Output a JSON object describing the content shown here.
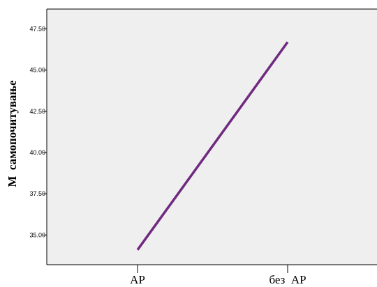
{
  "chart_data": {
    "type": "line",
    "categories": [
      "АР",
      "без  АР"
    ],
    "series": [
      {
        "values": [
          34.1,
          46.7
        ]
      }
    ],
    "ylabel": "M  самопочитување",
    "xlabel": "",
    "ylim": [
      33.2,
      48.7
    ],
    "yticks": [
      35.0,
      37.5,
      40.0,
      42.5,
      45.0,
      47.5
    ],
    "ytick_labels": [
      "35.00",
      "37.50",
      "40.00",
      "42.50",
      "45.00",
      "47.50"
    ],
    "grid": false,
    "legend": "none",
    "colors": {
      "line": "#6f2a7f",
      "plot_background": "#efefef",
      "axis": "#000000"
    }
  }
}
